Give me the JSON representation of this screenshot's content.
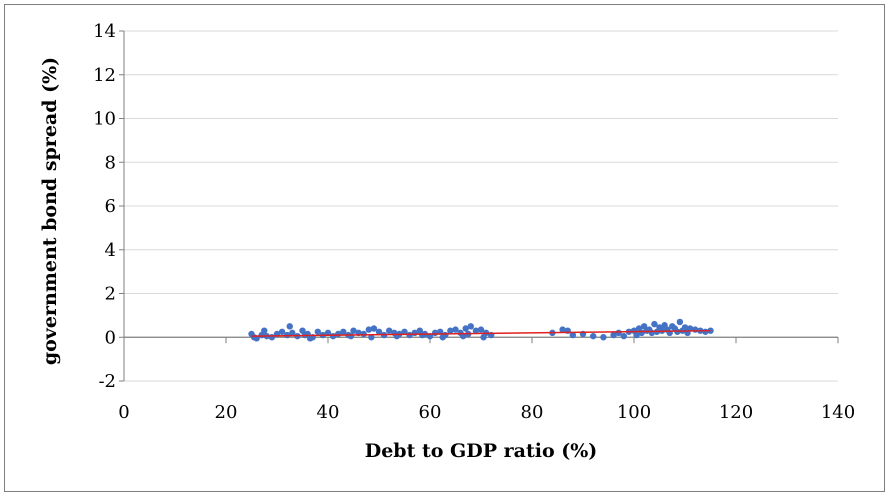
{
  "chart_data": {
    "type": "scatter",
    "title": "",
    "xlabel": "Debt to GDP ratio (%)",
    "ylabel": "government bond spread (%)",
    "xlim": [
      0,
      140
    ],
    "ylim": [
      -2,
      14
    ],
    "x_ticks": [
      "0",
      "20",
      "40",
      "60",
      "80",
      "100",
      "120",
      "140"
    ],
    "y_ticks": [
      "-2",
      "0",
      "2",
      "4",
      "6",
      "8",
      "10",
      "12",
      "14"
    ],
    "grid": "horizontal",
    "legend": "none",
    "point_color": "#4472c4",
    "trendline_color": "#e02020",
    "trendline": {
      "x": [
        25,
        115
      ],
      "y": [
        0.05,
        0.3
      ]
    },
    "series": [
      {
        "name": "observations",
        "x": [
          25,
          25.5,
          26,
          27,
          27.5,
          28,
          29,
          30,
          31,
          32,
          32.5,
          33,
          34,
          35,
          35.5,
          36,
          37,
          38,
          39,
          40,
          41,
          42,
          43,
          44,
          45,
          46,
          47,
          48,
          49,
          50,
          51,
          52,
          53,
          54,
          55,
          56,
          57,
          58,
          59,
          60,
          61,
          62,
          63,
          64,
          65,
          66,
          67,
          67.5,
          68,
          69,
          70,
          71,
          72,
          36.5,
          44.5,
          48.5,
          53.5,
          58.5,
          62.5,
          66.5,
          70.5,
          84,
          86,
          87,
          88,
          90,
          92,
          94,
          96,
          97,
          98,
          99,
          100,
          100.5,
          101,
          101.5,
          102,
          102.5,
          103,
          103.5,
          104,
          104.5,
          105,
          105.5,
          106,
          106.5,
          107,
          107.5,
          108,
          108.5,
          109,
          109.5,
          110,
          110.5,
          111,
          112,
          113,
          114,
          115
        ],
        "y": [
          0.15,
          0.0,
          -0.05,
          0.1,
          0.3,
          0.05,
          0.0,
          0.15,
          0.25,
          0.1,
          0.5,
          0.2,
          0.05,
          0.3,
          0.1,
          0.15,
          0.0,
          0.25,
          0.1,
          0.2,
          0.05,
          0.15,
          0.25,
          0.1,
          0.3,
          0.2,
          0.15,
          0.35,
          0.4,
          0.25,
          0.1,
          0.3,
          0.2,
          0.15,
          0.25,
          0.1,
          0.2,
          0.3,
          0.15,
          0.05,
          0.2,
          0.25,
          0.1,
          0.3,
          0.35,
          0.2,
          0.4,
          0.15,
          0.5,
          0.3,
          0.35,
          0.2,
          0.1,
          -0.05,
          0.05,
          0.0,
          0.05,
          0.1,
          0.0,
          0.05,
          0.0,
          0.2,
          0.35,
          0.3,
          0.1,
          0.15,
          0.05,
          0.0,
          0.1,
          0.2,
          0.05,
          0.25,
          0.3,
          0.1,
          0.4,
          0.2,
          0.5,
          0.3,
          0.35,
          0.2,
          0.6,
          0.25,
          0.45,
          0.3,
          0.55,
          0.35,
          0.2,
          0.5,
          0.4,
          0.25,
          0.7,
          0.3,
          0.45,
          0.2,
          0.4,
          0.35,
          0.3,
          0.25,
          0.3
        ]
      }
    ]
  }
}
